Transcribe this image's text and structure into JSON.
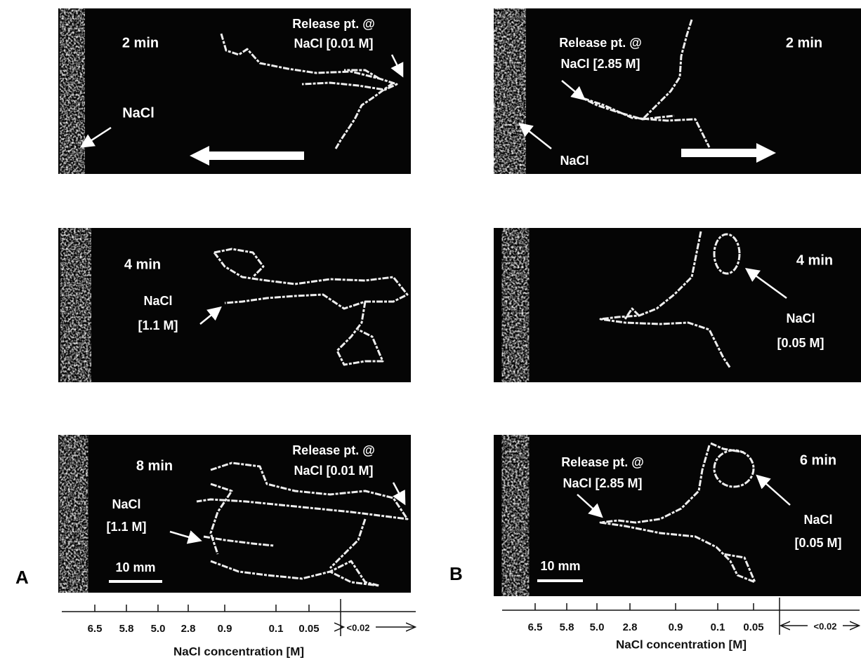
{
  "panels": [
    {
      "label": "A",
      "frames": [
        {
          "time": "2 min",
          "release": [
            "Release pt. @",
            "NaCl [0.01 M]"
          ],
          "source": "NaCl"
        },
        {
          "time": "4 min",
          "position": [
            "NaCl",
            "[1.1 M]"
          ]
        },
        {
          "time": "8 min",
          "release": [
            "Release pt. @",
            "NaCl [0.01 M]"
          ],
          "position": [
            "NaCl",
            "[1.1 M]"
          ],
          "scale": "10 mm"
        }
      ],
      "axis": {
        "ticks": [
          "6.5",
          "5.8",
          "5.0",
          "2.8",
          "0.9",
          "0.1",
          "0.05"
        ],
        "below": "<0.02",
        "title": "NaCl concentration [M]"
      }
    },
    {
      "label": "B",
      "frames": [
        {
          "time": "2 min",
          "release": [
            "Release pt. @",
            "NaCl [2.85 M]"
          ],
          "source": "NaCl"
        },
        {
          "time": "4 min",
          "position": [
            "NaCl",
            "[0.05 M]"
          ]
        },
        {
          "time": "6 min",
          "release": [
            "Release pt. @",
            "NaCl [2.85 M]"
          ],
          "position": [
            "NaCl",
            "[0.05 M]"
          ],
          "scale": "10 mm"
        }
      ],
      "axis": {
        "ticks": [
          "6.5",
          "5.8",
          "5.0",
          "2.8",
          "0.9",
          "0.1",
          "0.05"
        ],
        "below": "<0.02",
        "title": "NaCl concentration [M]"
      }
    }
  ]
}
